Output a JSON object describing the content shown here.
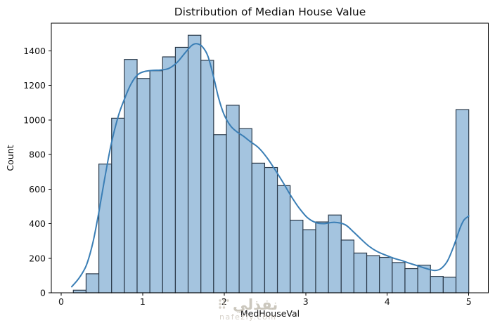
{
  "figure": {
    "watermark": {
      "brand_arabic": "نفذلي",
      "brand_domain": "nafezly.com"
    }
  },
  "chart_data": {
    "type": "histogram",
    "title": "Distribution of Median House Value",
    "xlabel": "MedHouseVal",
    "ylabel": "Count",
    "grid": false,
    "legend_position": "none",
    "xlim": [
      -0.12,
      5.24
    ],
    "ylim": [
      0,
      1560
    ],
    "x_ticks": [
      0,
      1,
      2,
      3,
      4,
      5
    ],
    "y_ticks": [
      0,
      200,
      400,
      600,
      800,
      1000,
      1200,
      1400
    ],
    "bin_start": 0.15,
    "bin_width": 0.15645,
    "counts": [
      15,
      110,
      745,
      1010,
      1350,
      1240,
      1285,
      1365,
      1420,
      1490,
      1345,
      915,
      1085,
      950,
      750,
      725,
      620,
      420,
      365,
      410,
      450,
      305,
      230,
      215,
      205,
      175,
      140,
      160,
      95,
      90,
      1060
    ],
    "kde_series": {
      "name": "kde",
      "points": [
        [
          0.13,
          35
        ],
        [
          0.22,
          85
        ],
        [
          0.31,
          160
        ],
        [
          0.39,
          290
        ],
        [
          0.46,
          460
        ],
        [
          0.53,
          650
        ],
        [
          0.61,
          850
        ],
        [
          0.7,
          1020
        ],
        [
          0.78,
          1125
        ],
        [
          0.86,
          1210
        ],
        [
          0.94,
          1262
        ],
        [
          1.02,
          1280
        ],
        [
          1.12,
          1287
        ],
        [
          1.22,
          1289
        ],
        [
          1.32,
          1298
        ],
        [
          1.42,
          1332
        ],
        [
          1.52,
          1388
        ],
        [
          1.6,
          1430
        ],
        [
          1.66,
          1441
        ],
        [
          1.73,
          1425
        ],
        [
          1.8,
          1370
        ],
        [
          1.87,
          1250
        ],
        [
          1.93,
          1130
        ],
        [
          2.0,
          1030
        ],
        [
          2.08,
          965
        ],
        [
          2.16,
          930
        ],
        [
          2.24,
          905
        ],
        [
          2.32,
          875
        ],
        [
          2.42,
          840
        ],
        [
          2.52,
          785
        ],
        [
          2.62,
          715
        ],
        [
          2.72,
          640
        ],
        [
          2.82,
          560
        ],
        [
          2.92,
          490
        ],
        [
          3.02,
          435
        ],
        [
          3.12,
          407
        ],
        [
          3.22,
          400
        ],
        [
          3.35,
          408
        ],
        [
          3.48,
          395
        ],
        [
          3.58,
          355
        ],
        [
          3.68,
          310
        ],
        [
          3.78,
          268
        ],
        [
          3.88,
          238
        ],
        [
          3.98,
          218
        ],
        [
          4.08,
          200
        ],
        [
          4.18,
          186
        ],
        [
          4.28,
          170
        ],
        [
          4.38,
          155
        ],
        [
          4.48,
          140
        ],
        [
          4.58,
          129
        ],
        [
          4.66,
          140
        ],
        [
          4.74,
          185
        ],
        [
          4.82,
          275
        ],
        [
          4.89,
          370
        ],
        [
          4.94,
          420
        ],
        [
          5.0,
          444
        ]
      ]
    },
    "colors": {
      "bar_fill": "#a4c4df",
      "bar_edge": "#2b3a4a",
      "kde_line": "#3a7eb5",
      "axis": "#000000",
      "text": "#111111"
    }
  }
}
